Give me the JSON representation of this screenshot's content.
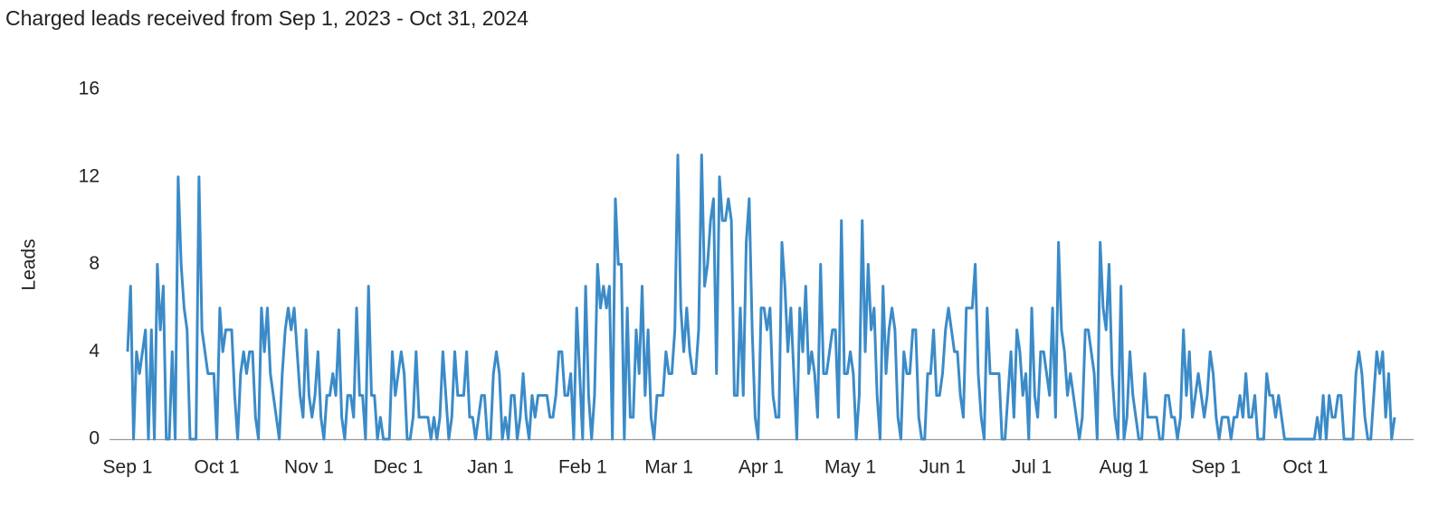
{
  "chart_data": {
    "type": "line",
    "title": "Charged leads received from Sep 1, 2023 - Oct 31, 2024",
    "y_label": "Leads",
    "color": "#3b8bc8",
    "grid": false,
    "xlim": [
      "2023-09-01",
      "2024-10-31"
    ],
    "xticks": [
      {
        "value": "2023-09-01",
        "label": "Sep 1"
      },
      {
        "value": "2023-10-01",
        "label": "Oct 1"
      },
      {
        "value": "2023-11-01",
        "label": "Nov 1"
      },
      {
        "value": "2023-12-01",
        "label": "Dec 1"
      },
      {
        "value": "2024-01-01",
        "label": "Jan 1"
      },
      {
        "value": "2024-02-01",
        "label": "Feb 1"
      },
      {
        "value": "2024-03-01",
        "label": "Mar 1"
      },
      {
        "value": "2024-04-01",
        "label": "Apr 1"
      },
      {
        "value": "2024-05-01",
        "label": "May 1"
      },
      {
        "value": "2024-06-01",
        "label": "Jun 1"
      },
      {
        "value": "2024-07-01",
        "label": "Jul 1"
      },
      {
        "value": "2024-08-01",
        "label": "Aug 1"
      },
      {
        "value": "2024-09-01",
        "label": "Sep 1"
      },
      {
        "value": "2024-10-01",
        "label": "Oct 1"
      }
    ],
    "ylim": [
      0,
      16
    ],
    "yticks": [
      0,
      4,
      8,
      12,
      16
    ],
    "x": [
      "2023-09-01",
      "2023-09-02",
      "2023-09-03",
      "2023-09-04",
      "2023-09-05",
      "2023-09-06",
      "2023-09-07",
      "2023-09-08",
      "2023-09-09",
      "2023-09-10",
      "2023-09-11",
      "2023-09-12",
      "2023-09-13",
      "2023-09-14",
      "2023-09-15",
      "2023-09-16",
      "2023-09-17",
      "2023-09-18",
      "2023-09-19",
      "2023-09-20",
      "2023-09-21",
      "2023-09-22",
      "2023-09-23",
      "2023-09-24",
      "2023-09-25",
      "2023-09-26",
      "2023-09-27",
      "2023-09-28",
      "2023-09-29",
      "2023-09-30",
      "2023-10-01",
      "2023-10-02",
      "2023-10-03",
      "2023-10-04",
      "2023-10-05",
      "2023-10-06",
      "2023-10-07",
      "2023-10-08",
      "2023-10-09",
      "2023-10-10",
      "2023-10-11",
      "2023-10-12",
      "2023-10-13",
      "2023-10-14",
      "2023-10-15",
      "2023-10-16",
      "2023-10-17",
      "2023-10-18",
      "2023-10-19",
      "2023-10-20",
      "2023-10-21",
      "2023-10-22",
      "2023-10-23",
      "2023-10-24",
      "2023-10-25",
      "2023-10-26",
      "2023-10-27",
      "2023-10-28",
      "2023-10-29",
      "2023-10-30",
      "2023-10-31",
      "2023-11-01",
      "2023-11-02",
      "2023-11-03",
      "2023-11-04",
      "2023-11-05",
      "2023-11-06",
      "2023-11-07",
      "2023-11-08",
      "2023-11-09",
      "2023-11-10",
      "2023-11-11",
      "2023-11-12",
      "2023-11-13",
      "2023-11-14",
      "2023-11-15",
      "2023-11-16",
      "2023-11-17",
      "2023-11-18",
      "2023-11-19",
      "2023-11-20",
      "2023-11-21",
      "2023-11-22",
      "2023-11-23",
      "2023-11-24",
      "2023-11-25",
      "2023-11-26",
      "2023-11-27",
      "2023-11-28",
      "2023-11-29",
      "2023-11-30",
      "2023-12-01",
      "2023-12-02",
      "2023-12-03",
      "2023-12-04",
      "2023-12-05",
      "2023-12-06",
      "2023-12-07",
      "2023-12-08",
      "2023-12-09",
      "2023-12-10",
      "2023-12-11",
      "2023-12-12",
      "2023-12-13",
      "2023-12-14",
      "2023-12-15",
      "2023-12-16",
      "2023-12-17",
      "2023-12-18",
      "2023-12-19",
      "2023-12-20",
      "2023-12-21",
      "2023-12-22",
      "2023-12-23",
      "2023-12-24",
      "2023-12-25",
      "2023-12-26",
      "2023-12-27",
      "2023-12-28",
      "2023-12-29",
      "2023-12-30",
      "2023-12-31",
      "2024-01-01",
      "2024-01-02",
      "2024-01-03",
      "2024-01-04",
      "2024-01-05",
      "2024-01-06",
      "2024-01-07",
      "2024-01-08",
      "2024-01-09",
      "2024-01-10",
      "2024-01-11",
      "2024-01-12",
      "2024-01-13",
      "2024-01-14",
      "2024-01-15",
      "2024-01-16",
      "2024-01-17",
      "2024-01-18",
      "2024-01-19",
      "2024-01-20",
      "2024-01-21",
      "2024-01-22",
      "2024-01-23",
      "2024-01-24",
      "2024-01-25",
      "2024-01-26",
      "2024-01-27",
      "2024-01-28",
      "2024-01-29",
      "2024-01-30",
      "2024-01-31",
      "2024-02-01",
      "2024-02-02",
      "2024-02-03",
      "2024-02-04",
      "2024-02-05",
      "2024-02-06",
      "2024-02-07",
      "2024-02-08",
      "2024-02-09",
      "2024-02-10",
      "2024-02-11",
      "2024-02-12",
      "2024-02-13",
      "2024-02-14",
      "2024-02-15",
      "2024-02-16",
      "2024-02-17",
      "2024-02-18",
      "2024-02-19",
      "2024-02-20",
      "2024-02-21",
      "2024-02-22",
      "2024-02-23",
      "2024-02-24",
      "2024-02-25",
      "2024-02-26",
      "2024-02-27",
      "2024-02-28",
      "2024-02-29",
      "2024-03-01",
      "2024-03-02",
      "2024-03-03",
      "2024-03-04",
      "2024-03-05",
      "2024-03-06",
      "2024-03-07",
      "2024-03-08",
      "2024-03-09",
      "2024-03-10",
      "2024-03-11",
      "2024-03-12",
      "2024-03-13",
      "2024-03-14",
      "2024-03-15",
      "2024-03-16",
      "2024-03-17",
      "2024-03-18",
      "2024-03-19",
      "2024-03-20",
      "2024-03-21",
      "2024-03-22",
      "2024-03-23",
      "2024-03-24",
      "2024-03-25",
      "2024-03-26",
      "2024-03-27",
      "2024-03-28",
      "2024-03-29",
      "2024-03-30",
      "2024-03-31",
      "2024-04-01",
      "2024-04-02",
      "2024-04-03",
      "2024-04-04",
      "2024-04-05",
      "2024-04-06",
      "2024-04-07",
      "2024-04-08",
      "2024-04-09",
      "2024-04-10",
      "2024-04-11",
      "2024-04-12",
      "2024-04-13",
      "2024-04-14",
      "2024-04-15",
      "2024-04-16",
      "2024-04-17",
      "2024-04-18",
      "2024-04-19",
      "2024-04-20",
      "2024-04-21",
      "2024-04-22",
      "2024-04-23",
      "2024-04-24",
      "2024-04-25",
      "2024-04-26",
      "2024-04-27",
      "2024-04-28",
      "2024-04-29",
      "2024-04-30",
      "2024-05-01",
      "2024-05-02",
      "2024-05-03",
      "2024-05-04",
      "2024-05-05",
      "2024-05-06",
      "2024-05-07",
      "2024-05-08",
      "2024-05-09",
      "2024-05-10",
      "2024-05-11",
      "2024-05-12",
      "2024-05-13",
      "2024-05-14",
      "2024-05-15",
      "2024-05-16",
      "2024-05-17",
      "2024-05-18",
      "2024-05-19",
      "2024-05-20",
      "2024-05-21",
      "2024-05-22",
      "2024-05-23",
      "2024-05-24",
      "2024-05-25",
      "2024-05-26",
      "2024-05-27",
      "2024-05-28",
      "2024-05-29",
      "2024-05-30",
      "2024-05-31",
      "2024-06-01",
      "2024-06-02",
      "2024-06-03",
      "2024-06-04",
      "2024-06-05",
      "2024-06-06",
      "2024-06-07",
      "2024-06-08",
      "2024-06-09",
      "2024-06-10",
      "2024-06-11",
      "2024-06-12",
      "2024-06-13",
      "2024-06-14",
      "2024-06-15",
      "2024-06-16",
      "2024-06-17",
      "2024-06-18",
      "2024-06-19",
      "2024-06-20",
      "2024-06-21",
      "2024-06-22",
      "2024-06-23",
      "2024-06-24",
      "2024-06-25",
      "2024-06-26",
      "2024-06-27",
      "2024-06-28",
      "2024-06-29",
      "2024-06-30",
      "2024-07-01",
      "2024-07-02",
      "2024-07-03",
      "2024-07-04",
      "2024-07-05",
      "2024-07-06",
      "2024-07-07",
      "2024-07-08",
      "2024-07-09",
      "2024-07-10",
      "2024-07-11",
      "2024-07-12",
      "2024-07-13",
      "2024-07-14",
      "2024-07-15",
      "2024-07-16",
      "2024-07-17",
      "2024-07-18",
      "2024-07-19",
      "2024-07-20",
      "2024-07-21",
      "2024-07-22",
      "2024-07-23",
      "2024-07-24",
      "2024-07-25",
      "2024-07-26",
      "2024-07-27",
      "2024-07-28",
      "2024-07-29",
      "2024-07-30",
      "2024-07-31",
      "2024-08-01",
      "2024-08-02",
      "2024-08-03",
      "2024-08-04",
      "2024-08-05",
      "2024-08-06",
      "2024-08-07",
      "2024-08-08",
      "2024-08-09",
      "2024-08-10",
      "2024-08-11",
      "2024-08-12",
      "2024-08-13",
      "2024-08-14",
      "2024-08-15",
      "2024-08-16",
      "2024-08-17",
      "2024-08-18",
      "2024-08-19",
      "2024-08-20",
      "2024-08-21",
      "2024-08-22",
      "2024-08-23",
      "2024-08-24",
      "2024-08-25",
      "2024-08-26",
      "2024-08-27",
      "2024-08-28",
      "2024-08-29",
      "2024-08-30",
      "2024-08-31",
      "2024-09-01",
      "2024-09-02",
      "2024-09-03",
      "2024-09-04",
      "2024-09-05",
      "2024-09-06",
      "2024-09-07",
      "2024-09-08",
      "2024-09-09",
      "2024-09-10",
      "2024-09-11",
      "2024-09-12",
      "2024-09-13",
      "2024-09-14",
      "2024-09-15",
      "2024-09-16",
      "2024-09-17",
      "2024-09-18",
      "2024-09-19",
      "2024-09-20",
      "2024-09-21",
      "2024-09-22",
      "2024-09-23",
      "2024-09-24",
      "2024-09-25",
      "2024-09-26",
      "2024-09-27",
      "2024-09-28",
      "2024-09-29",
      "2024-09-30",
      "2024-10-01",
      "2024-10-02",
      "2024-10-03",
      "2024-10-04",
      "2024-10-05",
      "2024-10-06",
      "2024-10-07",
      "2024-10-08",
      "2024-10-09",
      "2024-10-10",
      "2024-10-11",
      "2024-10-12",
      "2024-10-13",
      "2024-10-14",
      "2024-10-15",
      "2024-10-16",
      "2024-10-17",
      "2024-10-18",
      "2024-10-19",
      "2024-10-20",
      "2024-10-21",
      "2024-10-22",
      "2024-10-23",
      "2024-10-24",
      "2024-10-25",
      "2024-10-26",
      "2024-10-27",
      "2024-10-28",
      "2024-10-29",
      "2024-10-30",
      "2024-10-31"
    ],
    "values": [
      4,
      7,
      0,
      4,
      3,
      4,
      5,
      0,
      5,
      0,
      8,
      5,
      7,
      0,
      0,
      4,
      0,
      12,
      8,
      6,
      5,
      0,
      0,
      0,
      12,
      5,
      4,
      3,
      3,
      3,
      0,
      6,
      4,
      5,
      5,
      5,
      2,
      0,
      3,
      4,
      3,
      4,
      4,
      1,
      0,
      6,
      4,
      6,
      3,
      2,
      1,
      0,
      3,
      5,
      6,
      5,
      6,
      4,
      2,
      1,
      5,
      2,
      1,
      2,
      4,
      1,
      0,
      2,
      2,
      3,
      2,
      5,
      1,
      0,
      2,
      2,
      1,
      6,
      2,
      2,
      0,
      7,
      2,
      2,
      0,
      1,
      0,
      0,
      0,
      4,
      2,
      3,
      4,
      3,
      0,
      0,
      1,
      4,
      1,
      1,
      1,
      1,
      0,
      1,
      0,
      1,
      4,
      2,
      0,
      1,
      4,
      2,
      2,
      2,
      4,
      1,
      1,
      0,
      1,
      2,
      2,
      0,
      0,
      3,
      4,
      3,
      0,
      1,
      0,
      2,
      2,
      0,
      1,
      3,
      1,
      0,
      2,
      1,
      2,
      2,
      2,
      2,
      1,
      1,
      2,
      4,
      4,
      2,
      2,
      3,
      0,
      6,
      3,
      0,
      7,
      2,
      0,
      2,
      8,
      6,
      7,
      6,
      7,
      0,
      11,
      8,
      8,
      0,
      6,
      1,
      1,
      5,
      3,
      7,
      2,
      5,
      1,
      0,
      2,
      2,
      2,
      4,
      3,
      3,
      5,
      13,
      6,
      4,
      6,
      4,
      3,
      3,
      5,
      13,
      7,
      8,
      10,
      11,
      3,
      12,
      10,
      10,
      11,
      10,
      2,
      2,
      6,
      2,
      9,
      11,
      5,
      1,
      0,
      6,
      6,
      5,
      6,
      2,
      1,
      1,
      9,
      7,
      4,
      6,
      3,
      0,
      6,
      4,
      7,
      3,
      4,
      3,
      1,
      8,
      3,
      3,
      4,
      5,
      5,
      1,
      10,
      3,
      3,
      4,
      3,
      0,
      2,
      10,
      4,
      8,
      5,
      6,
      2,
      0,
      7,
      3,
      5,
      6,
      5,
      1,
      0,
      4,
      3,
      3,
      5,
      5,
      1,
      0,
      0,
      3,
      3,
      5,
      2,
      2,
      3,
      5,
      6,
      5,
      4,
      4,
      2,
      1,
      6,
      6,
      6,
      8,
      3,
      1,
      0,
      6,
      3,
      3,
      3,
      3,
      0,
      0,
      2,
      4,
      1,
      5,
      4,
      2,
      3,
      0,
      6,
      2,
      1,
      4,
      4,
      3,
      2,
      6,
      1,
      9,
      5,
      4,
      2,
      3,
      2,
      1,
      0,
      1,
      5,
      5,
      4,
      3,
      0,
      9,
      6,
      5,
      8,
      3,
      1,
      0,
      7,
      0,
      1,
      4,
      2,
      1,
      0,
      0,
      3,
      1,
      1,
      1,
      1,
      0,
      0,
      2,
      2,
      1,
      1,
      0,
      1,
      5,
      2,
      4,
      1,
      2,
      3,
      2,
      1,
      2,
      4,
      3,
      1,
      0,
      1,
      1,
      1,
      0,
      1,
      1,
      2,
      1,
      3,
      1,
      1,
      2,
      0,
      0,
      0,
      3,
      2,
      2,
      1,
      2,
      1,
      0,
      0,
      0,
      0,
      0,
      0,
      0,
      0,
      0,
      0,
      0,
      1,
      0,
      2,
      0,
      2,
      1,
      1,
      2,
      2,
      0,
      0,
      0,
      0,
      3,
      4,
      3,
      1,
      0,
      0,
      2,
      4,
      3,
      4,
      1,
      3,
      0,
      1
    ]
  }
}
